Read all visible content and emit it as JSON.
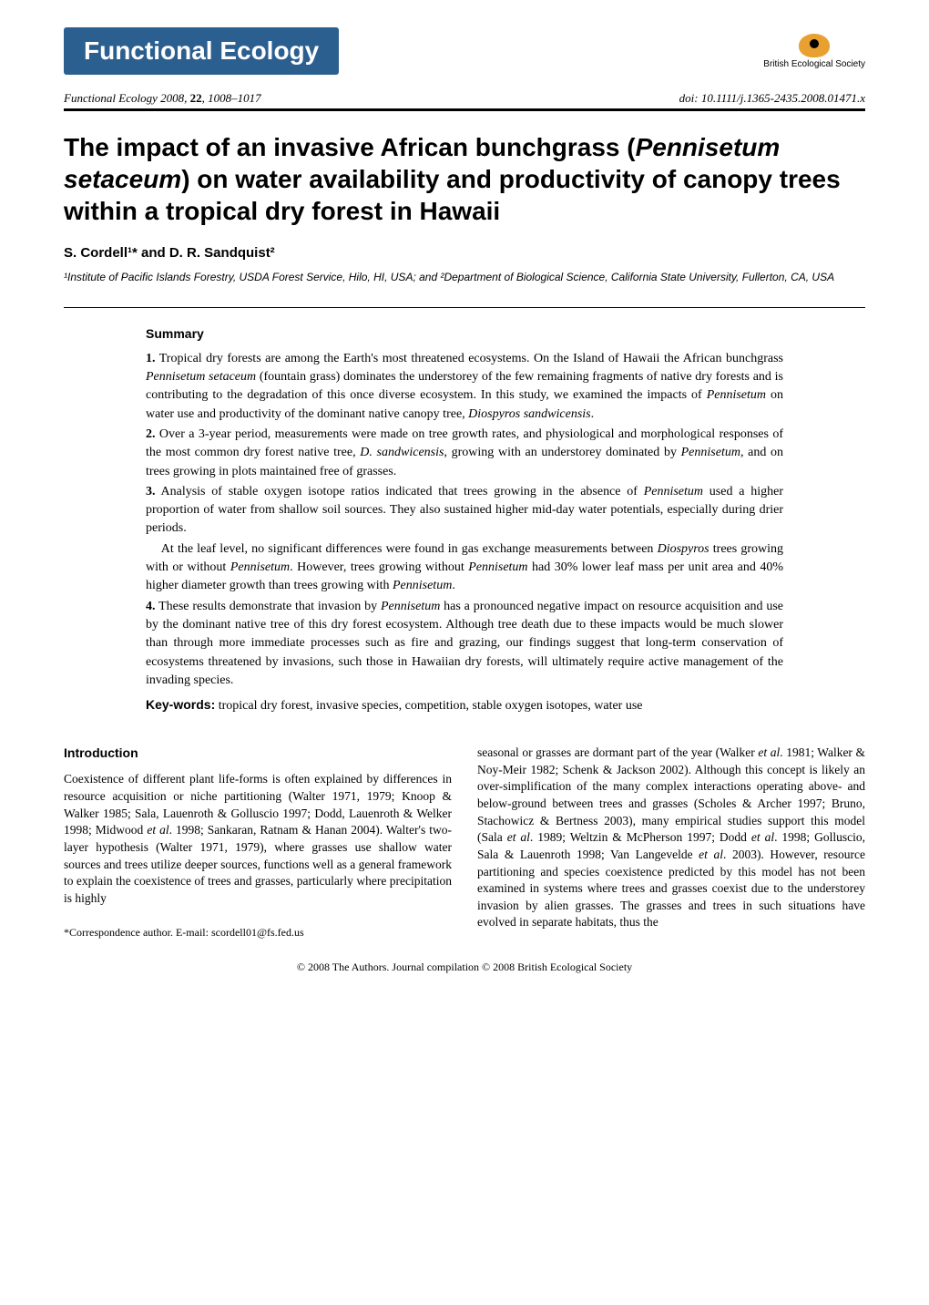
{
  "banner": {
    "journal_name": "Functional Ecology",
    "society": "British Ecological Society",
    "banner_bg": "#2b5f8f",
    "banner_fg": "#ffffff",
    "logo_bg": "#e8a030"
  },
  "meta": {
    "citation_prefix": "Functional Ecology",
    "year": "2008",
    "volume": "22",
    "pages": "1008–1017",
    "doi": "doi: 10.1111/j.1365-2435.2008.01471.x"
  },
  "title": {
    "line1": "The impact of an invasive African bunchgrass (",
    "species": "Pennisetum setaceum",
    "line2": ") on water availability and productivity of canopy trees within a tropical dry forest in Hawaii"
  },
  "authors": "S. Cordell¹* and D. R. Sandquist²",
  "affiliations": "¹Institute of Pacific Islands Forestry, USDA Forest Service, Hilo, HI, USA; and ²Department of Biological Science, California State University, Fullerton, CA, USA",
  "summary": {
    "heading": "Summary",
    "items": [
      {
        "num": "1.",
        "text_a": "Tropical dry forests are among the Earth's most threatened ecosystems. On the Island of Hawaii the African bunchgrass ",
        "sp1": "Pennisetum setaceum",
        "text_b": " (fountain grass) dominates the understorey of the few remaining fragments of native dry forests and is contributing to the degradation of this once diverse ecosystem. In this study, we examined the impacts of ",
        "sp2": "Pennisetum",
        "text_c": " on water use and productivity of the dominant native canopy tree, ",
        "sp3": "Diospyros sandwicensis",
        "text_d": "."
      },
      {
        "num": "2.",
        "text_a": "Over a 3-year period, measurements were made on tree growth rates, and physiological and morphological responses of the most common dry forest native tree, ",
        "sp1": "D. sandwicensis",
        "text_b": ", growing with an understorey dominated by ",
        "sp2": "Pennisetum",
        "text_c": ", and on trees growing in plots maintained free of grasses.",
        "sp3": "",
        "text_d": ""
      },
      {
        "num": "3.",
        "text_a": "Analysis of stable oxygen isotope ratios indicated that trees growing in the absence of ",
        "sp1": "Pennisetum",
        "text_b": " used a higher proportion of water from shallow soil sources. They also sustained higher mid-day water potentials, especially during drier periods.",
        "sp2": "",
        "text_c": "",
        "sp3": "",
        "text_d": ""
      }
    ],
    "indent_paras": [
      {
        "text_a": "At the leaf level, no significant differences were found in gas exchange measurements between ",
        "sp1": "Diospyros",
        "text_b": " trees growing with or without ",
        "sp2": "Pennisetum",
        "text_c": ". However, trees growing without ",
        "sp3": "Pennisetum",
        "text_d": " had 30% lower leaf mass per unit area and 40% higher diameter growth than trees growing with ",
        "sp4": "Pennisetum",
        "text_e": "."
      }
    ],
    "item4": {
      "num": "4.",
      "text_a": "These results demonstrate that invasion by ",
      "sp1": "Pennisetum",
      "text_b": " has a pronounced negative impact on resource acquisition and use by the dominant native tree of this dry forest ecosystem. Although tree death due to these impacts would be much slower than through more immediate processes such as fire and grazing, our findings suggest that long-term conservation of ecosystems threatened by invasions, such those in Hawaiian dry forests, will ultimately require active management of the invading species."
    }
  },
  "keywords": {
    "label": "Key-words:",
    "text": "tropical dry forest, invasive species, competition, stable oxygen isotopes, water use"
  },
  "intro": {
    "heading": "Introduction",
    "col1_a": "Coexistence of different plant life-forms is often explained by differences in resource acquisition or niche partitioning (Walter 1971, 1979; Knoop & Walker 1985; Sala, Lauenroth & Golluscio 1997; Dodd, Lauenroth & Welker 1998; Midwood ",
    "col1_sp1": "et al",
    "col1_b": ". 1998; Sankaran, Ratnam & Hanan 2004). Walter's two-layer hypothesis (Walter 1971, 1979), where grasses use shallow water sources and trees utilize deeper sources, functions well as a general framework to explain the coexistence of trees and grasses, particularly where precipitation is highly",
    "col2_a": "seasonal or grasses are dormant part of the year (Walker ",
    "col2_sp1": "et al",
    "col2_b": ". 1981; Walker & Noy-Meir 1982; Schenk & Jackson 2002). Although this concept is likely an over-simplification of the many complex interactions operating above- and below-ground between trees and grasses (Scholes & Archer 1997; Bruno, Stachowicz & Bertness 2003), many empirical studies support this model (Sala ",
    "col2_sp2": "et al",
    "col2_c": ". 1989; Weltzin & McPherson 1997; Dodd ",
    "col2_sp3": "et al",
    "col2_d": ". 1998; Golluscio, Sala & Lauenroth 1998; Van Langevelde ",
    "col2_sp4": "et al",
    "col2_e": ". 2003). However, resource partitioning and species coexistence predicted by this model has not been examined in systems where trees and grasses coexist due to the understorey invasion by alien grasses. The grasses and trees in such situations have evolved in separate habitats, thus the"
  },
  "correspondence": "*Correspondence author. E-mail: scordell01@fs.fed.us",
  "footer": "© 2008 The Authors. Journal compilation © 2008 British Ecological Society"
}
